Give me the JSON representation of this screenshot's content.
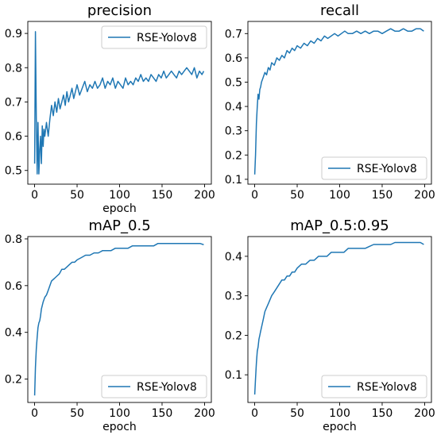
{
  "chart_data": [
    {
      "type": "line",
      "title": "precision",
      "xlabel": "epoch",
      "ylabel": "",
      "xlim": [
        -8,
        208
      ],
      "ylim": [
        0.46,
        0.935
      ],
      "xticks": [
        0,
        50,
        100,
        150,
        200
      ],
      "yticks": [
        0.5,
        0.6,
        0.7,
        0.8,
        0.9
      ],
      "x_tick_labels": [
        "0",
        "50",
        "100",
        "150",
        "200"
      ],
      "y_tick_labels": [
        "0.5",
        "0.6",
        "0.7",
        "0.8",
        "0.9"
      ],
      "legend_position": "upper-right",
      "grid": false,
      "series": [
        {
          "name": "RSE-Yolov8",
          "color": "#1f77b4",
          "x": [
            0,
            1,
            2,
            3,
            4,
            5,
            6,
            7,
            8,
            9,
            10,
            11,
            12,
            14,
            16,
            18,
            20,
            22,
            24,
            26,
            28,
            30,
            32,
            34,
            36,
            38,
            40,
            42,
            44,
            46,
            48,
            50,
            53,
            56,
            59,
            62,
            65,
            68,
            71,
            74,
            77,
            80,
            83,
            86,
            89,
            92,
            95,
            98,
            101,
            104,
            107,
            110,
            113,
            116,
            119,
            122,
            125,
            128,
            131,
            134,
            137,
            140,
            143,
            146,
            149,
            152,
            155,
            158,
            161,
            164,
            167,
            170,
            173,
            176,
            179,
            182,
            185,
            188,
            191,
            194,
            197,
            199
          ],
          "y": [
            0.52,
            0.905,
            0.65,
            0.49,
            0.64,
            0.49,
            0.56,
            0.6,
            0.52,
            0.63,
            0.57,
            0.62,
            0.6,
            0.64,
            0.6,
            0.65,
            0.69,
            0.66,
            0.7,
            0.67,
            0.71,
            0.68,
            0.7,
            0.72,
            0.69,
            0.73,
            0.7,
            0.72,
            0.74,
            0.71,
            0.73,
            0.75,
            0.72,
            0.74,
            0.76,
            0.73,
            0.75,
            0.74,
            0.76,
            0.74,
            0.75,
            0.77,
            0.74,
            0.76,
            0.75,
            0.77,
            0.74,
            0.76,
            0.75,
            0.74,
            0.77,
            0.75,
            0.76,
            0.75,
            0.77,
            0.76,
            0.78,
            0.76,
            0.77,
            0.76,
            0.78,
            0.77,
            0.76,
            0.78,
            0.77,
            0.79,
            0.77,
            0.78,
            0.79,
            0.78,
            0.77,
            0.79,
            0.78,
            0.79,
            0.8,
            0.79,
            0.78,
            0.8,
            0.77,
            0.79,
            0.78,
            0.79
          ]
        }
      ]
    },
    {
      "type": "line",
      "title": "recall",
      "xlabel": "",
      "ylabel": "",
      "xlim": [
        -8,
        208
      ],
      "ylim": [
        0.08,
        0.75
      ],
      "xticks": [
        0,
        50,
        100,
        150,
        200
      ],
      "yticks": [
        0.1,
        0.2,
        0.3,
        0.4,
        0.5,
        0.6,
        0.7
      ],
      "x_tick_labels": [
        "0",
        "50",
        "100",
        "150",
        "200"
      ],
      "y_tick_labels": [
        "0.1",
        "0.2",
        "0.3",
        "0.4",
        "0.5",
        "0.6",
        "0.7"
      ],
      "legend_position": "lower-right",
      "grid": false,
      "series": [
        {
          "name": "RSE-Yolov8",
          "color": "#1f77b4",
          "x": [
            0,
            1,
            2,
            3,
            4,
            5,
            6,
            7,
            8,
            10,
            12,
            14,
            16,
            18,
            20,
            23,
            26,
            29,
            32,
            35,
            38,
            41,
            44,
            47,
            50,
            54,
            58,
            62,
            66,
            70,
            74,
            78,
            82,
            86,
            90,
            94,
            98,
            102,
            106,
            110,
            115,
            120,
            125,
            130,
            135,
            140,
            145,
            150,
            155,
            160,
            165,
            170,
            175,
            180,
            185,
            190,
            195,
            199
          ],
          "y": [
            0.12,
            0.2,
            0.33,
            0.4,
            0.45,
            0.43,
            0.47,
            0.48,
            0.5,
            0.52,
            0.54,
            0.53,
            0.56,
            0.55,
            0.58,
            0.57,
            0.6,
            0.59,
            0.61,
            0.6,
            0.63,
            0.62,
            0.64,
            0.63,
            0.65,
            0.64,
            0.66,
            0.65,
            0.67,
            0.66,
            0.68,
            0.67,
            0.69,
            0.68,
            0.69,
            0.7,
            0.69,
            0.7,
            0.71,
            0.7,
            0.7,
            0.71,
            0.7,
            0.71,
            0.7,
            0.71,
            0.71,
            0.7,
            0.71,
            0.72,
            0.71,
            0.71,
            0.72,
            0.71,
            0.71,
            0.72,
            0.72,
            0.71
          ]
        }
      ]
    },
    {
      "type": "line",
      "title": "mAP_0.5",
      "xlabel": "epoch",
      "ylabel": "",
      "xlim": [
        -8,
        208
      ],
      "ylim": [
        0.1,
        0.81
      ],
      "xticks": [
        0,
        50,
        100,
        150,
        200
      ],
      "yticks": [
        0.2,
        0.4,
        0.6,
        0.8
      ],
      "x_tick_labels": [
        "0",
        "50",
        "100",
        "150",
        "200"
      ],
      "y_tick_labels": [
        "0.2",
        "0.4",
        "0.6",
        "0.8"
      ],
      "legend_position": "lower-right",
      "grid": false,
      "series": [
        {
          "name": "RSE-Yolov8",
          "color": "#1f77b4",
          "x": [
            0,
            1,
            2,
            3,
            4,
            5,
            6,
            7,
            8,
            10,
            12,
            14,
            16,
            18,
            20,
            23,
            26,
            29,
            32,
            35,
            38,
            41,
            44,
            47,
            50,
            55,
            60,
            65,
            70,
            75,
            80,
            85,
            90,
            95,
            100,
            105,
            110,
            115,
            120,
            125,
            130,
            135,
            140,
            145,
            150,
            155,
            160,
            165,
            170,
            175,
            180,
            185,
            190,
            195,
            199
          ],
          "y": [
            0.13,
            0.25,
            0.33,
            0.38,
            0.42,
            0.44,
            0.45,
            0.47,
            0.5,
            0.53,
            0.55,
            0.56,
            0.58,
            0.6,
            0.62,
            0.63,
            0.64,
            0.65,
            0.67,
            0.67,
            0.68,
            0.69,
            0.7,
            0.7,
            0.71,
            0.72,
            0.73,
            0.73,
            0.74,
            0.74,
            0.75,
            0.75,
            0.75,
            0.76,
            0.76,
            0.76,
            0.76,
            0.77,
            0.77,
            0.77,
            0.77,
            0.77,
            0.77,
            0.78,
            0.78,
            0.78,
            0.78,
            0.78,
            0.78,
            0.78,
            0.78,
            0.78,
            0.78,
            0.78,
            0.775
          ]
        }
      ]
    },
    {
      "type": "line",
      "title": "mAP_0.5:0.95",
      "xlabel": "epoch",
      "ylabel": "",
      "xlim": [
        -8,
        208
      ],
      "ylim": [
        0.03,
        0.45
      ],
      "xticks": [
        0,
        50,
        100,
        150,
        200
      ],
      "yticks": [
        0.1,
        0.2,
        0.3,
        0.4
      ],
      "x_tick_labels": [
        "0",
        "50",
        "100",
        "150",
        "200"
      ],
      "y_tick_labels": [
        "0.1",
        "0.2",
        "0.3",
        "0.4"
      ],
      "legend_position": "lower-right",
      "grid": false,
      "series": [
        {
          "name": "RSE-Yolov8",
          "color": "#1f77b4",
          "x": [
            0,
            1,
            2,
            3,
            4,
            5,
            6,
            7,
            8,
            10,
            12,
            14,
            16,
            18,
            20,
            23,
            26,
            29,
            32,
            35,
            38,
            41,
            44,
            47,
            50,
            55,
            60,
            65,
            70,
            75,
            80,
            85,
            90,
            95,
            100,
            105,
            110,
            115,
            120,
            125,
            130,
            135,
            140,
            145,
            150,
            155,
            160,
            165,
            170,
            175,
            180,
            185,
            190,
            195,
            199
          ],
          "y": [
            0.05,
            0.09,
            0.13,
            0.16,
            0.17,
            0.19,
            0.2,
            0.21,
            0.22,
            0.24,
            0.26,
            0.27,
            0.28,
            0.29,
            0.3,
            0.31,
            0.32,
            0.33,
            0.34,
            0.34,
            0.35,
            0.35,
            0.36,
            0.36,
            0.37,
            0.38,
            0.38,
            0.39,
            0.39,
            0.4,
            0.4,
            0.4,
            0.41,
            0.41,
            0.41,
            0.41,
            0.42,
            0.42,
            0.42,
            0.42,
            0.42,
            0.425,
            0.43,
            0.43,
            0.43,
            0.43,
            0.43,
            0.435,
            0.435,
            0.435,
            0.435,
            0.435,
            0.435,
            0.435,
            0.43
          ]
        }
      ]
    }
  ]
}
